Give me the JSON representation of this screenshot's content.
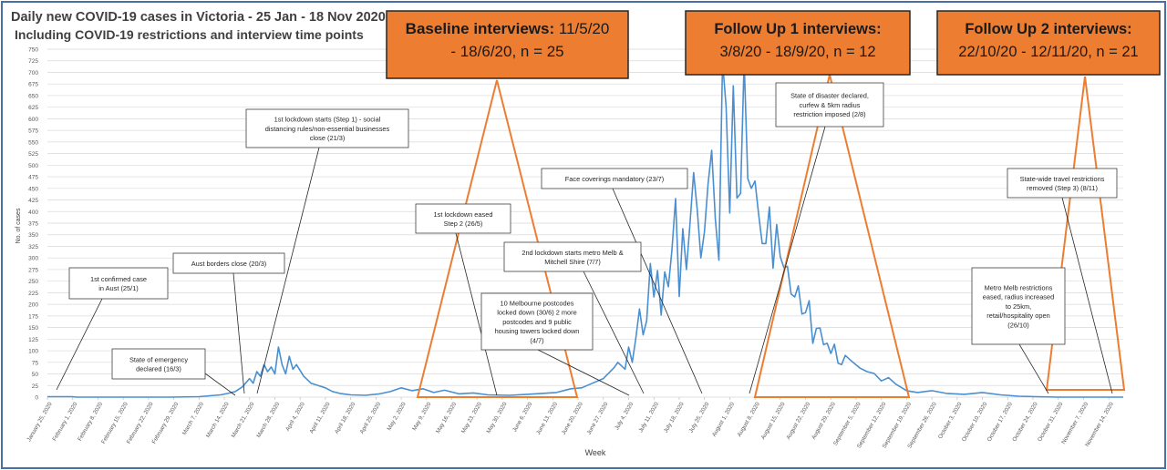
{
  "title_line1": "Daily new COVID-19 cases in Victoria - 25 Jan - 18 Nov 2020",
  "title_line2": "Including COVID-19 restrictions and interview time points",
  "colors": {
    "line": "#4a8fd0",
    "orange": "#ed7d31",
    "box_border": "#404040",
    "frame": "#4a6fa5",
    "grid": "#d9d9d9"
  },
  "chart_data": {
    "type": "line",
    "xlabel": "Week",
    "ylabel": "No. of cases",
    "ylim": [
      0,
      750
    ],
    "yticks": [
      0,
      25,
      50,
      75,
      100,
      125,
      150,
      175,
      200,
      225,
      250,
      275,
      300,
      325,
      350,
      375,
      400,
      425,
      450,
      475,
      500,
      525,
      550,
      575,
      600,
      625,
      650,
      675,
      700,
      725,
      750
    ],
    "start_date": "2020-01-25",
    "end_date": "2020-11-18",
    "x_tick_labels": [
      "January 25, 2020",
      "February 1, 2020",
      "February 8, 2020",
      "February 15, 2020",
      "February 22, 2020",
      "February 29, 2020",
      "March 7, 2020",
      "March 14, 2020",
      "March 21, 2020",
      "March 28, 2020",
      "April 4, 2020",
      "April 11, 2020",
      "April 18, 2020",
      "April 25, 2020",
      "May 2, 2020",
      "May 9, 2020",
      "May 16, 2020",
      "May 23, 2020",
      "May 30, 2020",
      "June 6, 2020",
      "June 13, 2020",
      "June 20, 2020",
      "June 27, 2020",
      "July 4, 2020",
      "July 11, 2020",
      "July 18, 2020",
      "July 25, 2020",
      "August 1, 2020",
      "August 8, 2020",
      "August 15, 2020",
      "August 22, 2020",
      "August 29, 2020",
      "September 5, 2020",
      "September 12, 2020",
      "September 19, 2020",
      "September 26, 2020",
      "October 3, 2020",
      "October 10, 2020",
      "October 17, 2020",
      "October 24, 2020",
      "October 31, 2020",
      "November 7, 2020",
      "November 14, 2020"
    ],
    "series": [
      {
        "name": "",
        "points": [
          [
            "2020-01-25",
            1
          ],
          [
            "2020-02-01",
            1
          ],
          [
            "2020-02-02",
            0
          ],
          [
            "2020-02-28",
            0
          ],
          [
            "2020-03-07",
            1
          ],
          [
            "2020-03-10",
            3
          ],
          [
            "2020-03-13",
            5
          ],
          [
            "2020-03-15",
            8
          ],
          [
            "2020-03-17",
            12
          ],
          [
            "2020-03-19",
            22
          ],
          [
            "2020-03-21",
            40
          ],
          [
            "2020-03-22",
            30
          ],
          [
            "2020-03-23",
            55
          ],
          [
            "2020-03-24",
            45
          ],
          [
            "2020-03-25",
            70
          ],
          [
            "2020-03-26",
            55
          ],
          [
            "2020-03-27",
            65
          ],
          [
            "2020-03-28",
            50
          ],
          [
            "2020-03-29",
            108
          ],
          [
            "2020-03-30",
            70
          ],
          [
            "2020-03-31",
            50
          ],
          [
            "2020-04-01",
            88
          ],
          [
            "2020-04-02",
            60
          ],
          [
            "2020-04-03",
            70
          ],
          [
            "2020-04-05",
            45
          ],
          [
            "2020-04-07",
            30
          ],
          [
            "2020-04-09",
            25
          ],
          [
            "2020-04-11",
            20
          ],
          [
            "2020-04-13",
            12
          ],
          [
            "2020-04-15",
            8
          ],
          [
            "2020-04-18",
            5
          ],
          [
            "2020-04-22",
            4
          ],
          [
            "2020-04-26",
            7
          ],
          [
            "2020-04-29",
            12
          ],
          [
            "2020-05-02",
            20
          ],
          [
            "2020-05-05",
            14
          ],
          [
            "2020-05-08",
            18
          ],
          [
            "2020-05-11",
            10
          ],
          [
            "2020-05-14",
            15
          ],
          [
            "2020-05-18",
            7
          ],
          [
            "2020-05-22",
            9
          ],
          [
            "2020-05-26",
            5
          ],
          [
            "2020-06-01",
            4
          ],
          [
            "2020-06-06",
            6
          ],
          [
            "2020-06-10",
            8
          ],
          [
            "2020-06-14",
            10
          ],
          [
            "2020-06-18",
            18
          ],
          [
            "2020-06-21",
            20
          ],
          [
            "2020-06-24",
            30
          ],
          [
            "2020-06-27",
            40
          ],
          [
            "2020-06-30",
            64
          ],
          [
            "2020-07-01",
            75
          ],
          [
            "2020-07-03",
            60
          ],
          [
            "2020-07-04",
            108
          ],
          [
            "2020-07-05",
            75
          ],
          [
            "2020-07-06",
            127
          ],
          [
            "2020-07-07",
            190
          ],
          [
            "2020-07-08",
            134
          ],
          [
            "2020-07-09",
            165
          ],
          [
            "2020-07-10",
            288
          ],
          [
            "2020-07-11",
            216
          ],
          [
            "2020-07-12",
            273
          ],
          [
            "2020-07-13",
            177
          ],
          [
            "2020-07-14",
            270
          ],
          [
            "2020-07-15",
            238
          ],
          [
            "2020-07-16",
            317
          ],
          [
            "2020-07-17",
            428
          ],
          [
            "2020-07-18",
            217
          ],
          [
            "2020-07-19",
            363
          ],
          [
            "2020-07-20",
            275
          ],
          [
            "2020-07-21",
            374
          ],
          [
            "2020-07-22",
            484
          ],
          [
            "2020-07-23",
            403
          ],
          [
            "2020-07-24",
            300
          ],
          [
            "2020-07-25",
            357
          ],
          [
            "2020-07-26",
            459
          ],
          [
            "2020-07-27",
            532
          ],
          [
            "2020-07-28",
            384
          ],
          [
            "2020-07-29",
            295
          ],
          [
            "2020-07-30",
            723
          ],
          [
            "2020-07-31",
            627
          ],
          [
            "2020-08-01",
            397
          ],
          [
            "2020-08-02",
            671
          ],
          [
            "2020-08-03",
            429
          ],
          [
            "2020-08-04",
            439
          ],
          [
            "2020-08-05",
            725
          ],
          [
            "2020-08-06",
            471
          ],
          [
            "2020-08-07",
            450
          ],
          [
            "2020-08-08",
            466
          ],
          [
            "2020-08-09",
            394
          ],
          [
            "2020-08-10",
            331
          ],
          [
            "2020-08-11",
            331
          ],
          [
            "2020-08-12",
            410
          ],
          [
            "2020-08-13",
            278
          ],
          [
            "2020-08-14",
            372
          ],
          [
            "2020-08-15",
            303
          ],
          [
            "2020-08-16",
            279
          ],
          [
            "2020-08-17",
            282
          ],
          [
            "2020-08-18",
            222
          ],
          [
            "2020-08-19",
            216
          ],
          [
            "2020-08-20",
            240
          ],
          [
            "2020-08-21",
            179
          ],
          [
            "2020-08-22",
            182
          ],
          [
            "2020-08-23",
            208
          ],
          [
            "2020-08-24",
            116
          ],
          [
            "2020-08-25",
            148
          ],
          [
            "2020-08-26",
            149
          ],
          [
            "2020-08-27",
            113
          ],
          [
            "2020-08-28",
            116
          ],
          [
            "2020-08-29",
            94
          ],
          [
            "2020-08-30",
            114
          ],
          [
            "2020-08-31",
            73
          ],
          [
            "2020-09-01",
            70
          ],
          [
            "2020-09-02",
            90
          ],
          [
            "2020-09-04",
            76
          ],
          [
            "2020-09-06",
            63
          ],
          [
            "2020-09-08",
            55
          ],
          [
            "2020-09-10",
            51
          ],
          [
            "2020-09-12",
            35
          ],
          [
            "2020-09-14",
            42
          ],
          [
            "2020-09-16",
            28
          ],
          [
            "2020-09-19",
            14
          ],
          [
            "2020-09-22",
            10
          ],
          [
            "2020-09-26",
            14
          ],
          [
            "2020-09-30",
            8
          ],
          [
            "2020-10-05",
            6
          ],
          [
            "2020-10-10",
            10
          ],
          [
            "2020-10-15",
            5
          ],
          [
            "2020-10-20",
            2
          ],
          [
            "2020-10-25",
            1
          ],
          [
            "2020-10-31",
            0
          ],
          [
            "2020-11-05",
            0
          ],
          [
            "2020-11-10",
            0
          ],
          [
            "2020-11-18",
            0
          ]
        ]
      }
    ]
  },
  "interview_boxes": [
    {
      "label_bold": "Baseline interviews:",
      "label_rest": " 11/5/20",
      "line2": "- 18/6/20, n = 25"
    },
    {
      "label_bold": "Follow Up 1 interviews:",
      "label_rest": "",
      "line2": "3/8/20 - 18/9/20, n = 12"
    },
    {
      "label_bold": "Follow Up 2 interviews:",
      "label_rest": "",
      "line2": "22/10/20 - 12/11/20, n = 21"
    }
  ],
  "annotations": [
    {
      "lines": [
        "1st confirmed case",
        "in Aust (25/1)"
      ]
    },
    {
      "lines": [
        "State of emergency",
        "declared (16/3)"
      ]
    },
    {
      "lines": [
        "Aust borders close (20/3)"
      ]
    },
    {
      "lines": [
        "1st lockdown starts (Step 1) - social",
        "distancing rules/non-essential businesses",
        "close (21/3)"
      ]
    },
    {
      "lines": [
        "1st lockdown eased",
        "Step 2 (26/5)"
      ]
    },
    {
      "lines": [
        "10 Melbourne postcodes",
        "locked down (30/6) 2 more",
        "postcodes and 9 public",
        "housing towers locked down",
        "(4/7)"
      ]
    },
    {
      "lines": [
        "2nd lockdown starts metro Melb &",
        "Mitchell Shire (7/7)"
      ]
    },
    {
      "lines": [
        "Face coverings mandatory (23/7)"
      ]
    },
    {
      "lines": [
        "State of disaster declared,",
        "curfew & 5km radius",
        "restriction imposed (2/8)"
      ]
    },
    {
      "lines": [
        "Metro Melb restrictions",
        "eased, radius increased",
        "to 25km,",
        "retail/hospitality open",
        "(26/10)"
      ]
    },
    {
      "lines": [
        "State-wide travel restrictions",
        "removed (Step 3) (8/11)"
      ]
    }
  ]
}
